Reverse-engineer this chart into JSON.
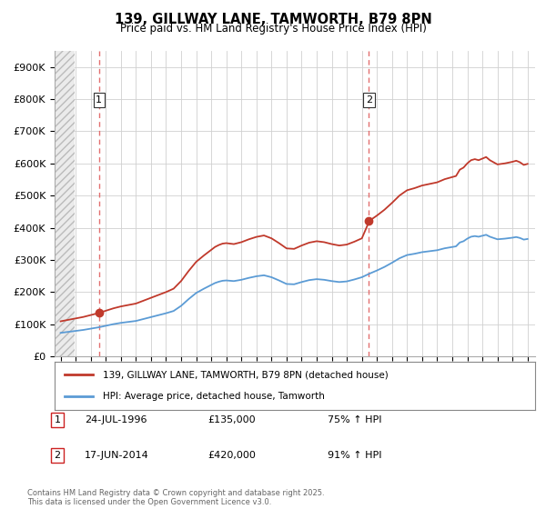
{
  "title1": "139, GILLWAY LANE, TAMWORTH, B79 8PN",
  "title2": "Price paid vs. HM Land Registry's House Price Index (HPI)",
  "hpi_color": "#5b9bd5",
  "price_color": "#c0392b",
  "p1_year": 1996.55,
  "p1_price": 135000,
  "p2_year": 2014.46,
  "p2_price": 420000,
  "purchase1_date": "24-JUL-1996",
  "purchase1_price": "£135,000",
  "purchase1_hpi": "75% ↑ HPI",
  "purchase2_date": "17-JUN-2014",
  "purchase2_price": "£420,000",
  "purchase2_hpi": "91% ↑ HPI",
  "legend_line1": "139, GILLWAY LANE, TAMWORTH, B79 8PN (detached house)",
  "legend_line2": "HPI: Average price, detached house, Tamworth",
  "footer": "Contains HM Land Registry data © Crown copyright and database right 2025.\nThis data is licensed under the Open Government Licence v3.0.",
  "bg_color": "#ffffff",
  "grid_color": "#d0d0d0",
  "vline_color": "#e06060",
  "xlim_start": 1993.6,
  "xlim_end": 2025.5,
  "ylim": [
    0,
    950000
  ],
  "yticks": [
    0,
    100000,
    200000,
    300000,
    400000,
    500000,
    600000,
    700000,
    800000,
    900000
  ],
  "ytick_labels": [
    "£0",
    "£100K",
    "£200K",
    "£300K",
    "£400K",
    "£500K",
    "£600K",
    "£700K",
    "£800K",
    "£900K"
  ]
}
